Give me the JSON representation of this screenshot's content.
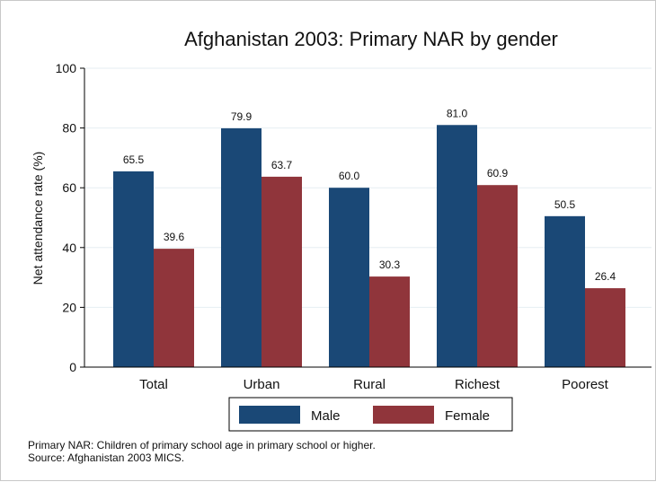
{
  "chart_data": {
    "type": "bar",
    "title": "Afghanistan 2003: Primary NAR by gender",
    "ylabel": "Net attendance rate (%)",
    "xlabel": "",
    "categories": [
      "Total",
      "Urban",
      "Rural",
      "Richest",
      "Poorest"
    ],
    "series": [
      {
        "name": "Male",
        "values": [
          65.5,
          79.9,
          60.0,
          81.0,
          50.5
        ],
        "labels": [
          "65.5",
          "79.9",
          "60.0",
          "81.0",
          "50.5"
        ],
        "color": "#1a4876"
      },
      {
        "name": "Female",
        "values": [
          39.6,
          63.7,
          30.3,
          60.9,
          26.4
        ],
        "labels": [
          "39.6",
          "63.7",
          "30.3",
          "60.9",
          "26.4"
        ],
        "color": "#90353b"
      }
    ],
    "ylim": [
      0,
      100
    ],
    "yticks": [
      0,
      20,
      40,
      60,
      80,
      100
    ],
    "grid": true,
    "legend_position": "bottom"
  },
  "notes": [
    "Primary NAR: Children of primary school age in primary school or higher.",
    "Source: Afghanistan 2003 MICS."
  ],
  "colors": {
    "grid": "#e6eef2",
    "axis": "#000000"
  }
}
